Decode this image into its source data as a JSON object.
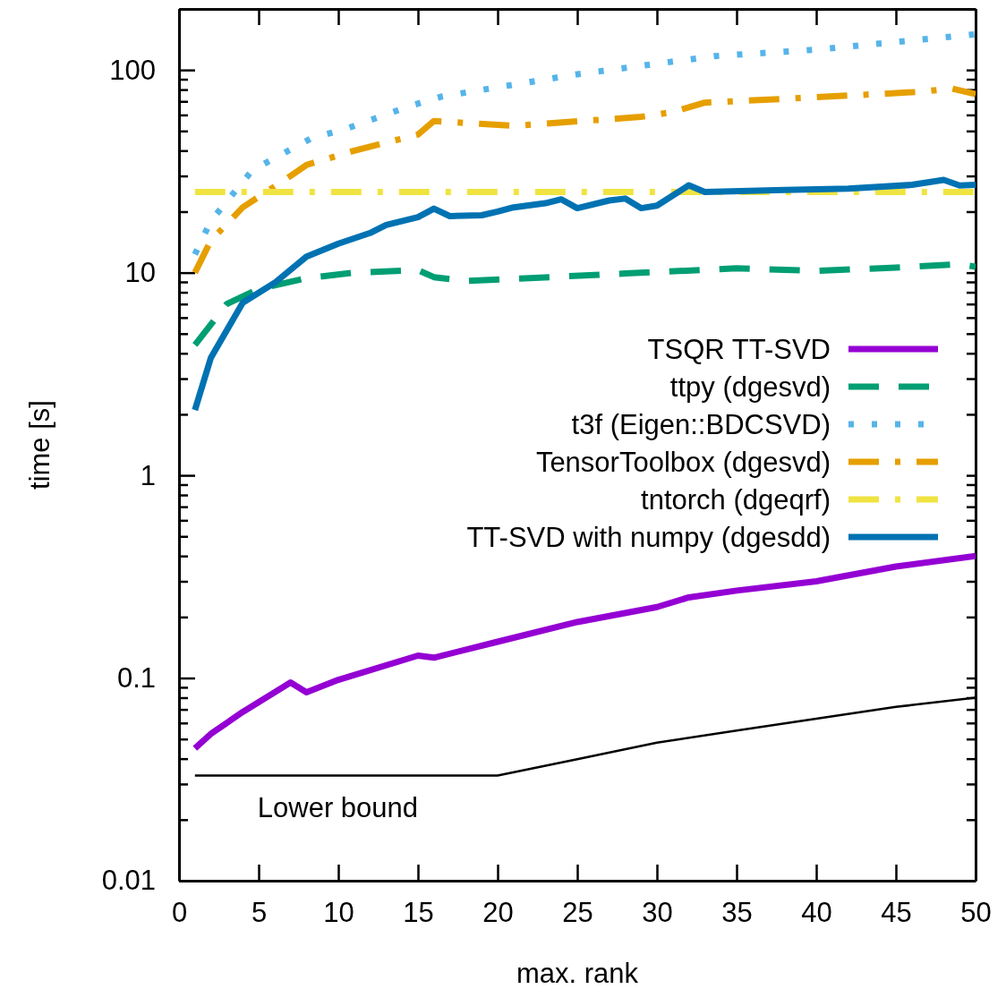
{
  "chart_data": {
    "type": "line",
    "xlabel": "max. rank",
    "ylabel": "time [s]",
    "log": "y",
    "legend": "right",
    "grid": false,
    "xlim": [
      0,
      50
    ],
    "xticks": [
      0,
      5,
      10,
      15,
      20,
      25,
      30,
      35,
      40,
      45,
      50
    ],
    "ylim": [
      0.01,
      200
    ],
    "yticks": [
      0.01,
      {
        "value": 0.02,
        "label": null
      },
      {
        "value": 0.03,
        "label": null
      },
      {
        "value": 0.04,
        "label": null
      },
      {
        "value": 0.05,
        "label": null
      },
      {
        "value": 0.06,
        "label": null
      },
      {
        "value": 0.07,
        "label": null
      },
      {
        "value": 0.08,
        "label": null
      },
      {
        "value": 0.09,
        "label": null
      },
      0.1,
      {
        "value": 0.2,
        "label": null
      },
      {
        "value": 0.3,
        "label": null
      },
      {
        "value": 0.4,
        "label": null
      },
      {
        "value": 0.5,
        "label": null
      },
      {
        "value": 0.6,
        "label": null
      },
      {
        "value": 0.7,
        "label": null
      },
      {
        "value": 0.8,
        "label": null
      },
      {
        "value": 0.9,
        "label": null
      },
      1,
      {
        "value": 2,
        "label": null
      },
      {
        "value": 3,
        "label": null
      },
      {
        "value": 4,
        "label": null
      },
      {
        "value": 5,
        "label": null
      },
      {
        "value": 6,
        "label": null
      },
      {
        "value": 7,
        "label": null
      },
      {
        "value": 8,
        "label": null
      },
      {
        "value": 9,
        "label": null
      },
      10,
      {
        "value": 20,
        "label": null
      },
      {
        "value": 30,
        "label": null
      },
      {
        "value": 40,
        "label": null
      },
      {
        "value": 50,
        "label": null
      },
      {
        "value": 60,
        "label": null
      },
      {
        "value": 70,
        "label": null
      },
      {
        "value": 80,
        "label": null
      },
      {
        "value": 90,
        "label": null
      },
      100,
      {
        "value": 200,
        "label": null
      }
    ],
    "annotations": [
      {
        "text": "Lower bound",
        "x": 1,
        "y": 0.033
      }
    ],
    "series": [
      {
        "name": "TSQR TT-SVD",
        "color": "#9400d3",
        "line_style": "solid",
        "x": [
          1,
          2,
          4,
          7,
          8,
          10,
          15,
          16,
          20,
          25,
          30,
          32,
          35,
          40,
          45,
          50
        ],
        "values": [
          0.045,
          0.053,
          0.068,
          0.095,
          0.085,
          0.098,
          0.129,
          0.126,
          0.151,
          0.189,
          0.224,
          0.25,
          0.27,
          0.3,
          0.355,
          0.4
        ]
      },
      {
        "name": "ttpy (dgesvd)",
        "color": "#009e73",
        "line_style": "dashed",
        "x": [
          1,
          3,
          5,
          8,
          11,
          15,
          16,
          18,
          22,
          28,
          35,
          40,
          45,
          49,
          50
        ],
        "values": [
          4.4,
          7,
          8.3,
          9.4,
          10,
          10.3,
          9.5,
          9.1,
          9.4,
          9.9,
          10.5,
          10.2,
          10.6,
          11,
          10.7
        ]
      },
      {
        "name": "t3f (Eigen::BDCSVD)",
        "color": "#56b4e9",
        "line_style": "dotted",
        "x": [
          1,
          2,
          4.6,
          8.3,
          10.4,
          14.4,
          16.5,
          24.9,
          33.6,
          40,
          48.5,
          50
        ],
        "values": [
          12.3,
          18,
          32,
          46,
          51,
          66,
          74,
          95,
          117,
          126,
          146,
          150
        ]
      },
      {
        "name": "TensorToolbox (dgesvd)",
        "color": "#e69f00",
        "line_style": "dashdot",
        "x": [
          1,
          2,
          4,
          7,
          8,
          11,
          15,
          16,
          21,
          29,
          31,
          33,
          38,
          46.5,
          48.5,
          50
        ],
        "values": [
          10,
          14.4,
          21,
          30,
          34,
          40,
          48,
          56,
          53,
          58.7,
          62,
          69,
          72,
          78,
          81,
          76
        ]
      },
      {
        "name": "tntorch (dgeqrf)",
        "color": "#f0e442",
        "line_style": "dashdot",
        "x": [
          1,
          10,
          20,
          30,
          40,
          50
        ],
        "values": [
          25,
          25,
          25,
          25,
          25,
          25
        ]
      },
      {
        "name": "TT-SVD with numpy (dgesdd)",
        "color": "#0072b2",
        "line_style": "solid",
        "x": [
          1,
          2,
          4,
          6,
          8,
          10,
          12,
          13,
          15,
          16,
          17,
          19,
          20,
          21,
          23,
          24,
          25,
          27,
          28,
          29,
          30,
          32,
          33,
          38,
          42,
          46,
          48,
          49,
          50
        ],
        "values": [
          2.1,
          3.8,
          7.1,
          8.9,
          12,
          13.9,
          15.7,
          17.2,
          18.8,
          20.7,
          19,
          19.2,
          20,
          21,
          22,
          23,
          20.8,
          22.7,
          23.2,
          20.8,
          21.4,
          27,
          25,
          25.6,
          26,
          27.1,
          28.7,
          26.9,
          27.1
        ]
      },
      {
        "color": "#000000",
        "line_style": "solid",
        "x": [
          1,
          20,
          25,
          30,
          35,
          40,
          45,
          50
        ],
        "values": [
          0.033,
          0.033,
          0.0398,
          0.048,
          0.055,
          0.063,
          0.072,
          0.08
        ]
      }
    ]
  }
}
